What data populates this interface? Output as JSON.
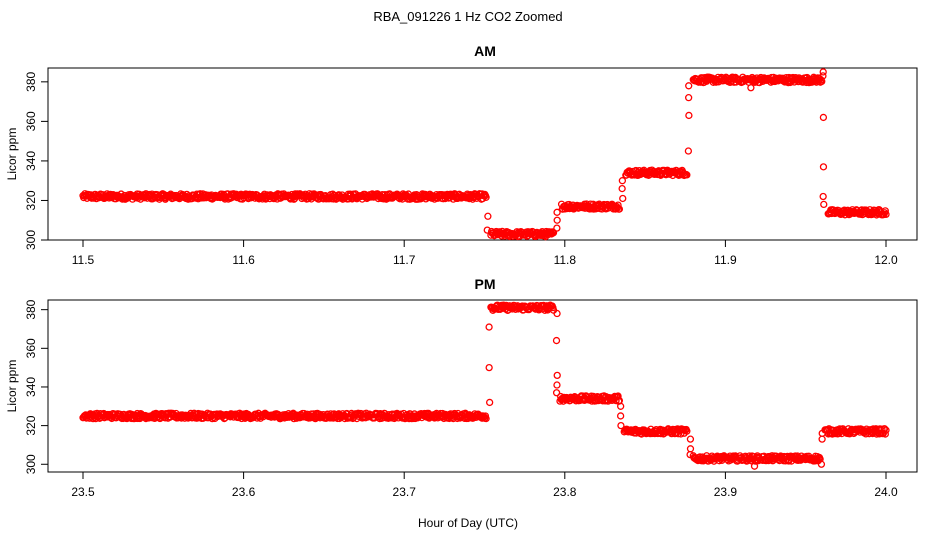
{
  "title": "RBA_091226  1 Hz CO2 Zoomed",
  "xlabel": "Hour of Day (UTC)",
  "colors": {
    "points": "#ff0000",
    "axes": "#000000"
  },
  "chart_data": [
    {
      "type": "scatter",
      "title": "AM",
      "xlabel": "",
      "ylabel": "Licor ppm",
      "xlim": [
        11.5,
        12.0
      ],
      "ylim": [
        300,
        387
      ],
      "xticks": [
        11.5,
        11.6,
        11.7,
        11.8,
        11.9,
        12.0
      ],
      "xtick_labels": [
        "11.5",
        "11.6",
        "11.7",
        "11.8",
        "11.9",
        "12.0"
      ],
      "yticks": [
        300,
        320,
        340,
        360,
        380
      ],
      "ytick_labels": [
        "300",
        "320",
        "340",
        "360",
        "380"
      ],
      "marker": "open-circle",
      "series": [
        {
          "segments": [
            {
              "x_start": 11.5,
              "x_end": 11.751,
              "y": 322
            },
            {
              "x_start": 11.754,
              "x_end": 11.793,
              "y": 303
            },
            {
              "x_start": 11.798,
              "x_end": 11.834,
              "y": 317
            },
            {
              "x_start": 11.838,
              "x_end": 11.876,
              "y": 334
            },
            {
              "x_start": 11.88,
              "x_end": 11.96,
              "y": 381
            },
            {
              "x_start": 11.964,
              "x_end": 12.0,
              "y": 314
            }
          ],
          "transitions": [
            {
              "x": 11.752,
              "y": [
                312,
                305
              ]
            },
            {
              "x": 11.795,
              "y": [
                306,
                310,
                314
              ]
            },
            {
              "x": 11.836,
              "y": [
                321,
                326,
                330
              ]
            },
            {
              "x": 11.877,
              "y": [
                345,
                363,
                372,
                378
              ]
            },
            {
              "x": 11.916,
              "y": [
                377
              ]
            },
            {
              "x": 11.961,
              "y": [
                385,
                383,
                362,
                337,
                322,
                318
              ]
            }
          ]
        }
      ]
    },
    {
      "type": "scatter",
      "title": "PM",
      "xlabel": "",
      "ylabel": "Licor ppm",
      "xlim": [
        23.5,
        24.0
      ],
      "ylim": [
        296,
        385
      ],
      "xticks": [
        23.5,
        23.6,
        23.7,
        23.8,
        23.9,
        24.0
      ],
      "xtick_labels": [
        "23.5",
        "23.6",
        "23.7",
        "23.8",
        "23.9",
        "24.0"
      ],
      "yticks": [
        300,
        320,
        340,
        360,
        380
      ],
      "ytick_labels": [
        "300",
        "320",
        "340",
        "360",
        "380"
      ],
      "marker": "open-circle",
      "series": [
        {
          "segments": [
            {
              "x_start": 23.5,
              "x_end": 23.751,
              "y": 325
            },
            {
              "x_start": 23.754,
              "x_end": 23.793,
              "y": 381
            },
            {
              "x_start": 23.797,
              "x_end": 23.834,
              "y": 334
            },
            {
              "x_start": 23.837,
              "x_end": 23.876,
              "y": 317
            },
            {
              "x_start": 23.88,
              "x_end": 23.959,
              "y": 303
            },
            {
              "x_start": 23.962,
              "x_end": 24.0,
              "y": 317
            }
          ],
          "transitions": [
            {
              "x": 23.753,
              "y": [
                332,
                350,
                371
              ]
            },
            {
              "x": 23.795,
              "y": [
                378,
                364,
                346,
                341,
                337
              ]
            },
            {
              "x": 23.835,
              "y": [
                330,
                325,
                320
              ]
            },
            {
              "x": 23.878,
              "y": [
                313,
                308,
                305
              ]
            },
            {
              "x": 23.918,
              "y": [
                299
              ]
            },
            {
              "x": 23.96,
              "y": [
                300,
                313,
                316
              ]
            }
          ]
        }
      ]
    }
  ]
}
